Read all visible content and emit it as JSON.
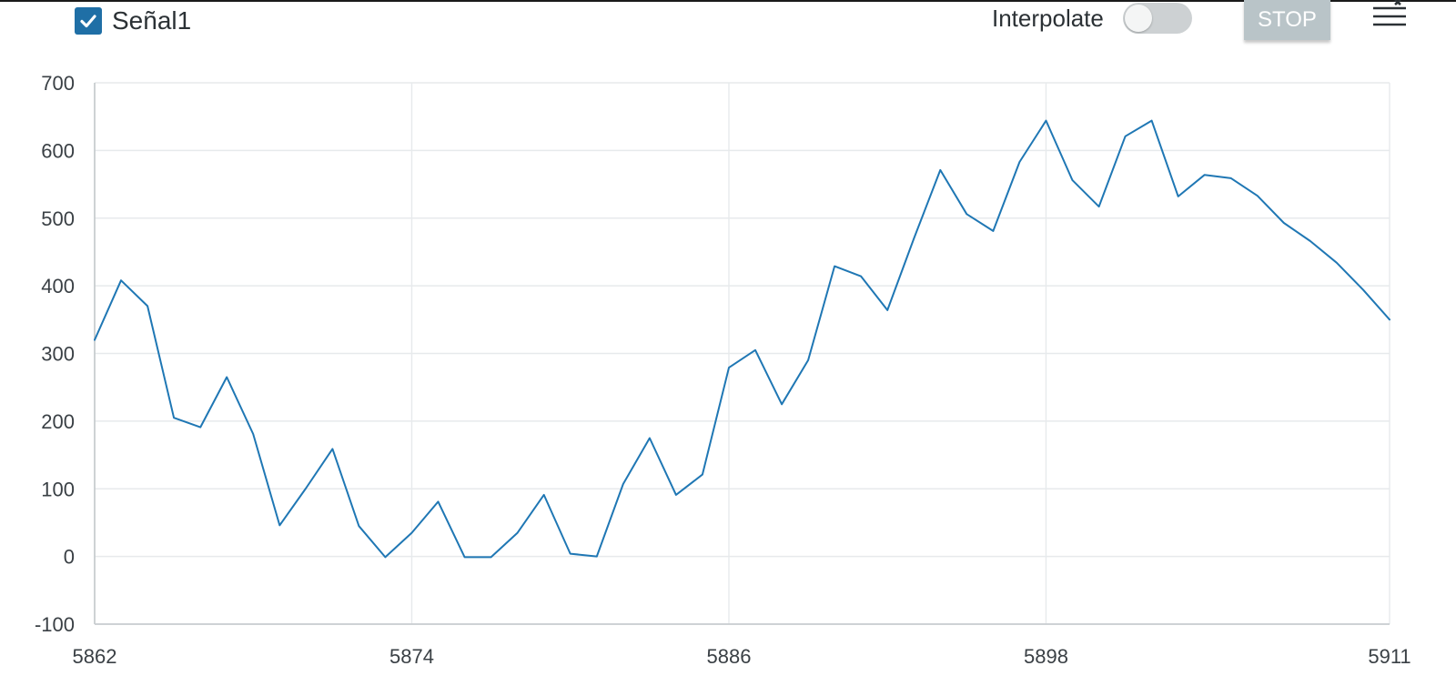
{
  "legend": {
    "series_label": "Señal1",
    "checked": true
  },
  "controls": {
    "interpolate_label": "Interpolate",
    "interpolate_on": false,
    "stop_label": "STOP",
    "menu_icon": "list-clear-icon"
  },
  "colors": {
    "series": "#1f77b4",
    "checkbox": "#1f6fa6",
    "stop_button": "#b9c4c8",
    "grid": "#e7eaec"
  },
  "chart_data": {
    "type": "line",
    "title": "",
    "xlabel": "",
    "ylabel": "",
    "xlim": [
      5862,
      5911
    ],
    "ylim": [
      -100,
      700
    ],
    "x_ticks": [
      "5862",
      "5874",
      "5886",
      "5898",
      "5911"
    ],
    "y_ticks": [
      "700",
      "600",
      "500",
      "400",
      "300",
      "200",
      "100",
      "0",
      "-100"
    ],
    "grid": true,
    "series": [
      {
        "name": "Señal1",
        "x": [
          5862,
          5863,
          5864,
          5865,
          5866,
          5867,
          5868,
          5869,
          5870,
          5871,
          5872,
          5873,
          5874,
          5875,
          5876,
          5877,
          5878,
          5879,
          5880,
          5881,
          5882,
          5883,
          5884,
          5885,
          5886,
          5887,
          5888,
          5889,
          5890,
          5891,
          5892,
          5893,
          5894,
          5895,
          5896,
          5897,
          5898,
          5899,
          5900,
          5901,
          5902,
          5903,
          5904,
          5905,
          5906,
          5907,
          5908,
          5909,
          5910,
          5911
        ],
        "values": [
          320,
          408,
          370,
          205,
          191,
          265,
          181,
          46,
          101,
          159,
          45,
          -1,
          35,
          81,
          -1,
          -1,
          35,
          91,
          4,
          0,
          107,
          175,
          91,
          121,
          279,
          305,
          225,
          290,
          429,
          414,
          364,
          470,
          571,
          506,
          481,
          583,
          644,
          556,
          517,
          621,
          644,
          532,
          564,
          559,
          533,
          493,
          466,
          434,
          394,
          350
        ]
      }
    ]
  }
}
